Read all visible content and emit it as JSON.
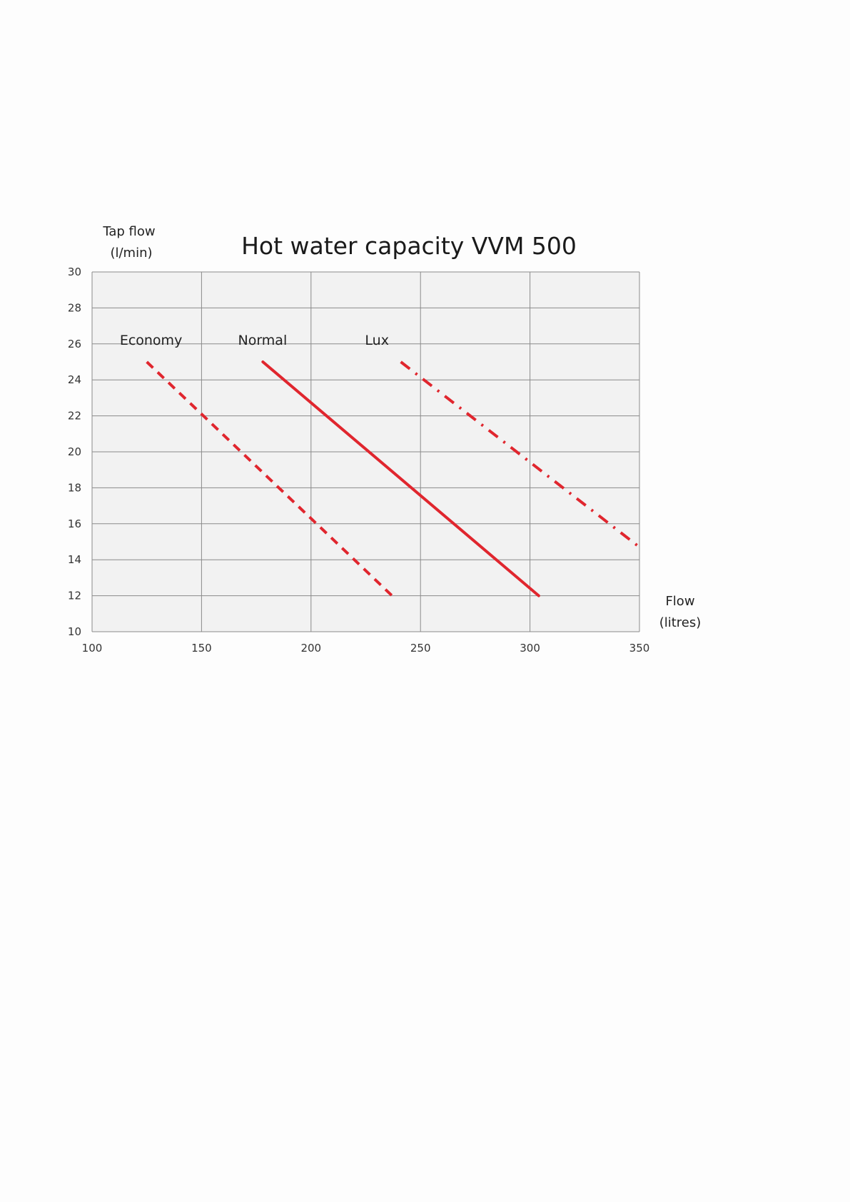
{
  "chart_data": {
    "type": "line",
    "title": "Hot water capacity  VVM 500",
    "ylabel_line1": "Tap flow",
    "ylabel_line2": "(l/min)",
    "xlabel_line1": "Flow",
    "xlabel_line2": "(litres)",
    "xlim": [
      100,
      350
    ],
    "ylim": [
      10,
      30
    ],
    "x_ticks": [
      "100",
      "150",
      "200",
      "250",
      "300",
      "350"
    ],
    "y_ticks": [
      "10",
      "12",
      "14",
      "16",
      "18",
      "20",
      "22",
      "24",
      "26",
      "28",
      "30"
    ],
    "grid": true,
    "series": [
      {
        "name": "Economy",
        "style": "dashed",
        "color": "#e0262e",
        "x": [
          125,
          237
        ],
        "y": [
          25,
          12
        ],
        "label_x": 112,
        "label_y": 26.2
      },
      {
        "name": "Normal",
        "style": "solid",
        "color": "#e0262e",
        "x": [
          178,
          304
        ],
        "y": [
          25,
          12
        ],
        "label_x": 166,
        "label_y": 26.2
      },
      {
        "name": "Lux",
        "style": "dashdot",
        "color": "#e0262e",
        "x": [
          241,
          350
        ],
        "y": [
          25,
          14.7
        ],
        "label_x": 224,
        "label_y": 26.2
      }
    ]
  }
}
